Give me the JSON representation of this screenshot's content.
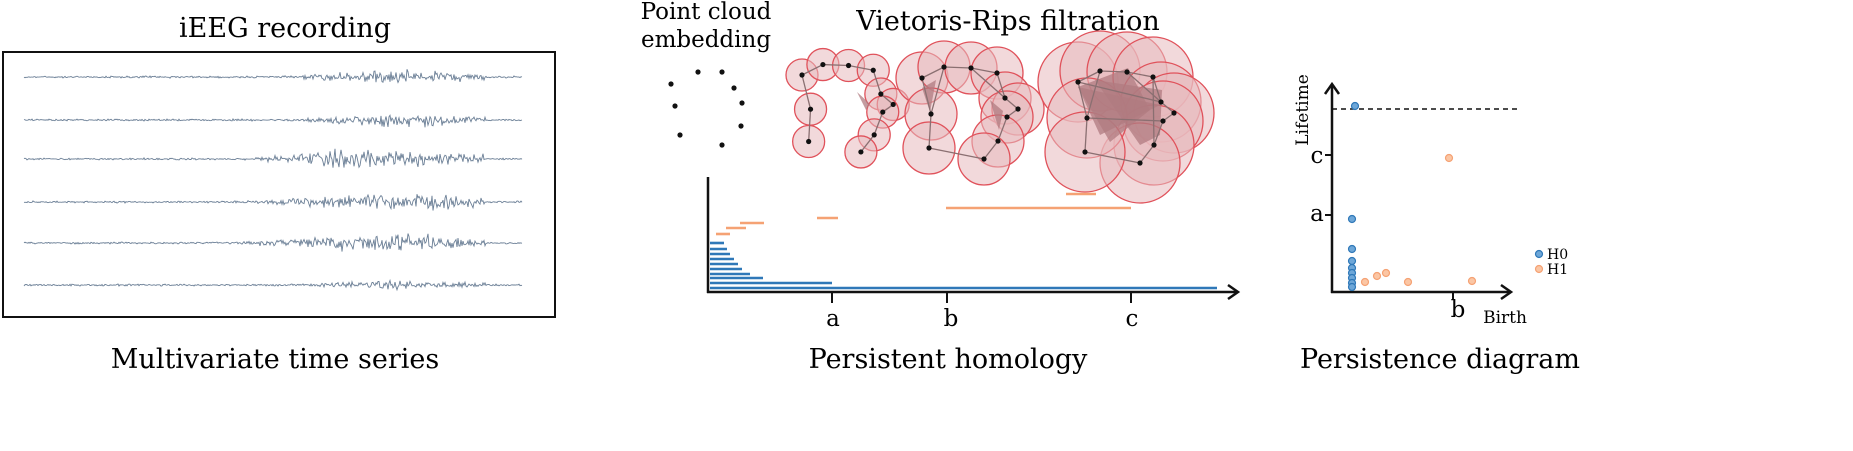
{
  "eeg": {
    "title": "iEEG recording",
    "caption": "Multivariate time series",
    "channel_count": 6,
    "trace_color": "#6b7f96"
  },
  "filtration": {
    "point_cloud_label": [
      "Point cloud",
      "embedding"
    ],
    "title": "Vietoris-Rips filtration",
    "ball_fill": "#e8b9bd",
    "ball_stroke": "#e0525b",
    "simplex_fill": "#b07b80"
  },
  "barcode": {
    "caption": "Persistent homology",
    "tick_labels": [
      "a",
      "b",
      "c"
    ],
    "h0_color": "#2f78b8",
    "h1_color": "#f5a274"
  },
  "diagram": {
    "caption": "Persistence diagram",
    "ylabel": "Lifetime",
    "xlabel": "Birth",
    "y_tick_labels": [
      "c",
      "a"
    ],
    "x_tick_labels": [
      "b"
    ],
    "legend": [
      "H0",
      "H1"
    ]
  }
}
